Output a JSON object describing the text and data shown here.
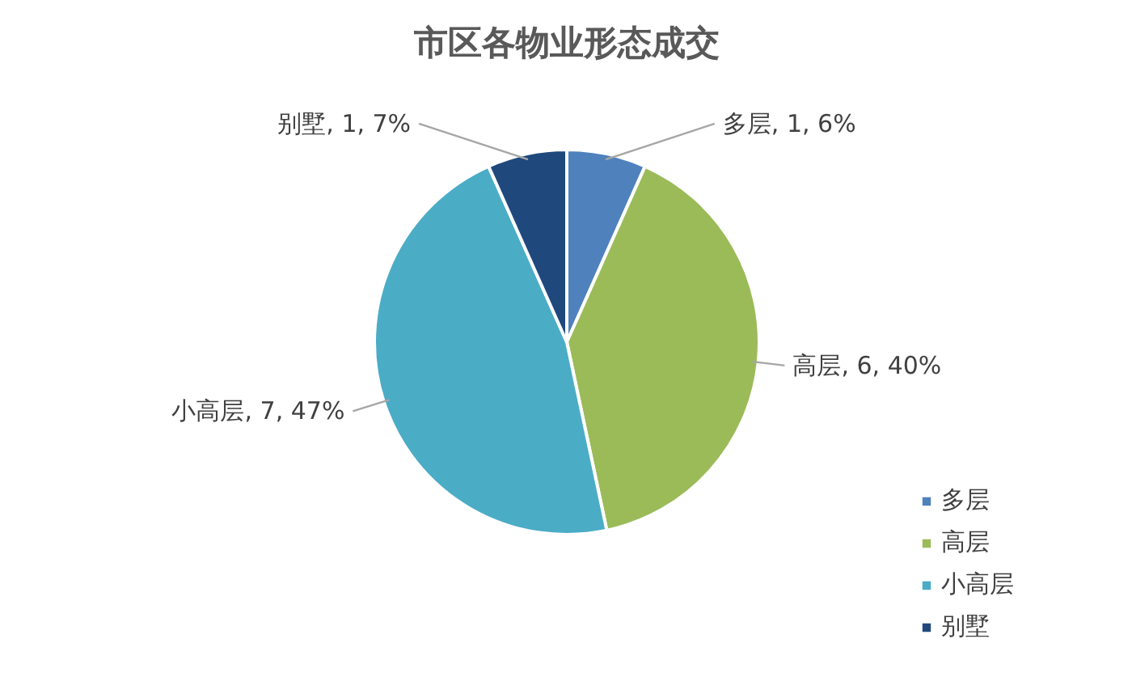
{
  "chart_data": {
    "type": "pie",
    "title": "市区各物业形态成交",
    "categories": [
      "多层",
      "高层",
      "小高层",
      "别墅"
    ],
    "values": [
      1,
      6,
      7,
      1
    ],
    "value_labels": [
      "多层, 1, 6%",
      "高层, 6, 40%",
      "小高层, 7, 47%",
      "别墅, 1, 7%"
    ],
    "colors": [
      "#4f81bd",
      "#9bbb59",
      "#4bacc6",
      "#1f497d"
    ],
    "legend": "bottom right"
  }
}
